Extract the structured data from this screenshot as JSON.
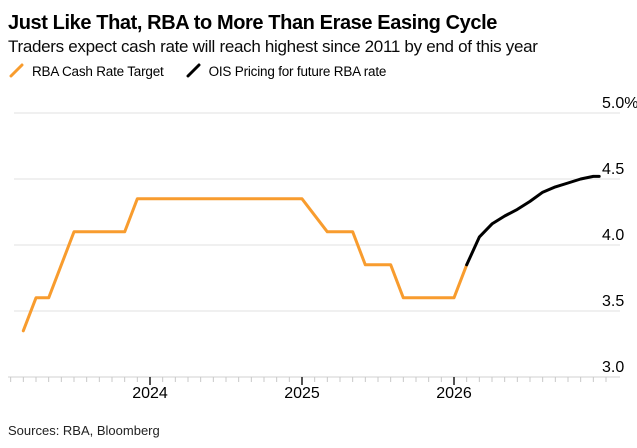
{
  "header": {
    "title": "Just Like That, RBA to More Than Erase Easing Cycle",
    "subtitle": "Traders expect cash rate will reach highest since 2011 by end of this year"
  },
  "legend": [
    {
      "label": "RBA Cash Rate Target",
      "color": "#F89C2E",
      "icon": "line-swatch-icon"
    },
    {
      "label": "OIS Pricing for future RBA rate",
      "color": "#000000",
      "icon": "line-swatch-icon"
    }
  ],
  "footer": {
    "sources": "Sources: RBA, Bloomberg"
  },
  "colors": {
    "background": "#ffffff",
    "rba_line": "#F89C2E",
    "ois_line": "#000000",
    "gridline": "#e2e2e2",
    "axis_line": "#d2d2d2",
    "minor_tick": "#c8c8c8",
    "major_tick": "#1a1a1a",
    "text": "#000000"
  },
  "chart_data": {
    "type": "line",
    "title": "Just Like That, RBA to More Than Erase Easing Cycle",
    "subtitle": "Traders expect cash rate will reach highest since 2011 by end of this year",
    "xlabel": "",
    "ylabel": "",
    "ylim": [
      3.0,
      5.0
    ],
    "xlim": [
      "2023-02",
      "2027-01"
    ],
    "grid": "horizontal",
    "legend_position": "top",
    "yticks": [
      {
        "value": 5.0,
        "label": "5.0%"
      },
      {
        "value": 4.5,
        "label": "4.5"
      },
      {
        "value": 4.0,
        "label": "4.0"
      },
      {
        "value": 3.5,
        "label": "3.5"
      },
      {
        "value": 3.0,
        "label": "3.0"
      }
    ],
    "xticks": [
      {
        "date": "2024-01",
        "label": "2024"
      },
      {
        "date": "2025-01",
        "label": "2025"
      },
      {
        "date": "2026-01",
        "label": "2026"
      }
    ],
    "x_minor_ticks": {
      "from": "2023-02",
      "to": "2027-01",
      "step": "month"
    },
    "series": [
      {
        "id": "rba-cash-rate",
        "name": "RBA Cash Rate Target",
        "color": "#F89C2E",
        "points": [
          [
            "2023-03-01",
            3.35
          ],
          [
            "2023-04-01",
            3.6
          ],
          [
            "2023-05-01",
            3.6
          ],
          [
            "2023-07-01",
            4.1
          ],
          [
            "2023-11-01",
            4.1
          ],
          [
            "2023-12-01",
            4.35
          ],
          [
            "2025-01-01",
            4.35
          ],
          [
            "2025-03-01",
            4.1
          ],
          [
            "2025-05-01",
            4.1
          ],
          [
            "2025-06-01",
            3.85
          ],
          [
            "2025-08-01",
            3.85
          ],
          [
            "2025-09-01",
            3.6
          ],
          [
            "2026-01-01",
            3.6
          ],
          [
            "2026-02-01",
            3.85
          ]
        ]
      },
      {
        "id": "ois-pricing",
        "name": "OIS Pricing for future RBA rate",
        "color": "#000000",
        "points": [
          [
            "2026-02-01",
            3.85
          ],
          [
            "2026-03-01",
            4.06
          ],
          [
            "2026-04-01",
            4.16
          ],
          [
            "2026-05-01",
            4.22
          ],
          [
            "2026-06-01",
            4.27
          ],
          [
            "2026-07-01",
            4.33
          ],
          [
            "2026-08-01",
            4.4
          ],
          [
            "2026-09-01",
            4.44
          ],
          [
            "2026-10-01",
            4.47
          ],
          [
            "2026-11-01",
            4.5
          ],
          [
            "2026-12-01",
            4.52
          ],
          [
            "2026-12-15",
            4.52
          ]
        ]
      }
    ]
  }
}
